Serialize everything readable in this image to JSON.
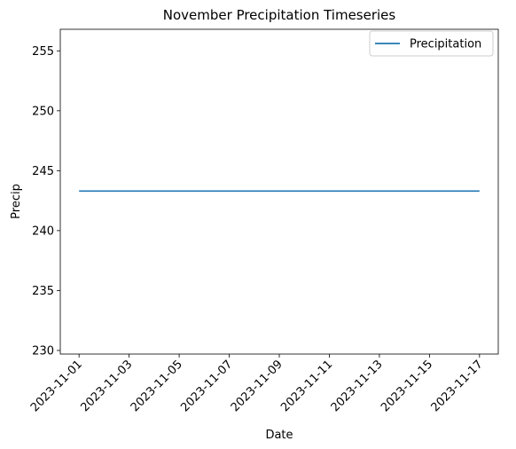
{
  "chart_data": {
    "type": "line",
    "title": "November Precipitation Timeseries",
    "xlabel": "Date",
    "ylabel": "Precip",
    "x": [
      "2023-11-01",
      "2023-11-17"
    ],
    "series": [
      {
        "name": "Precipitation",
        "color": "#1f77b4",
        "values": [
          243.3,
          243.3
        ]
      }
    ],
    "xticks": [
      "2023-11-01",
      "2023-11-03",
      "2023-11-05",
      "2023-11-07",
      "2023-11-09",
      "2023-11-11",
      "2023-11-13",
      "2023-11-15",
      "2023-11-17"
    ],
    "yticks": [
      230,
      235,
      240,
      245,
      250,
      255
    ],
    "xlim": [
      "2023-10-31 06:00",
      "2023-11-17 18:00"
    ],
    "ylim": [
      229.7,
      256.8
    ],
    "xtick_rotation": 45,
    "grid": false,
    "legend_position": "upper right"
  }
}
